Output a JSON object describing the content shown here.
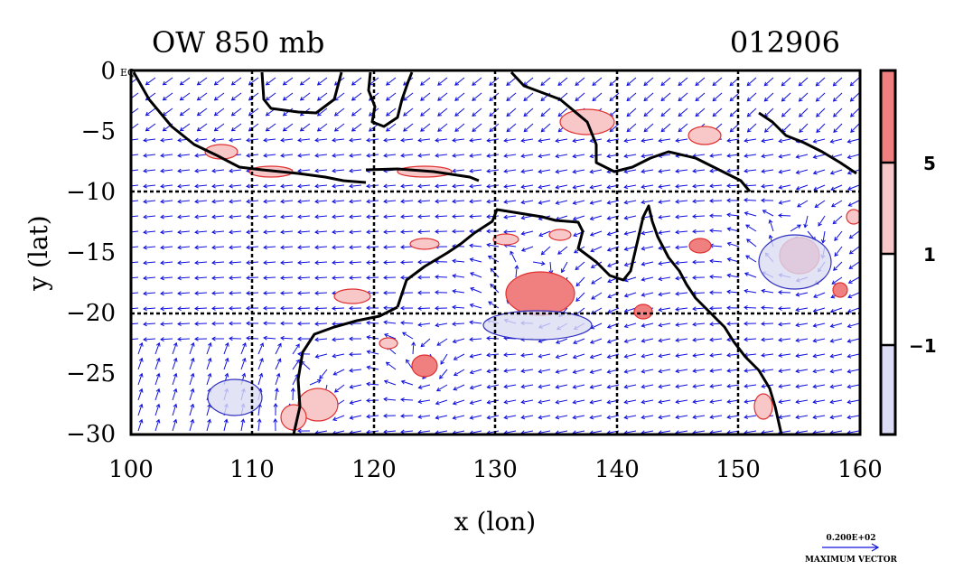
{
  "header": {
    "title_left": "OW 850 mb",
    "title_right": "012906"
  },
  "axes": {
    "xlabel": "x (lon)",
    "ylabel": "y (lat)",
    "x_range": [
      100,
      160
    ],
    "y_range": [
      -30,
      0
    ],
    "x_ticks": [
      "100",
      "110",
      "120",
      "130",
      "140",
      "150",
      "160"
    ],
    "y_ticks": [
      "0",
      "−5",
      "−10",
      "−15",
      "−20",
      "−25",
      "−30"
    ],
    "y_top_suffix": "EQ",
    "grid_lines": {
      "lon": [
        110,
        120,
        130,
        140,
        150
      ],
      "lat": [
        -10,
        -20
      ]
    }
  },
  "colorbar": {
    "labels": [
      "5",
      "1",
      "−1"
    ],
    "colors": [
      "#f08080",
      "#f8c8c8",
      "#ffffff",
      "#dcdcf4"
    ]
  },
  "vector_key": {
    "value": "0.200E+02",
    "label": "MAXIMUM VECTOR"
  },
  "colors": {
    "vector": "#1010dd",
    "positive": "#e03030",
    "negative": "#3030c0",
    "coast": "#000000"
  }
}
